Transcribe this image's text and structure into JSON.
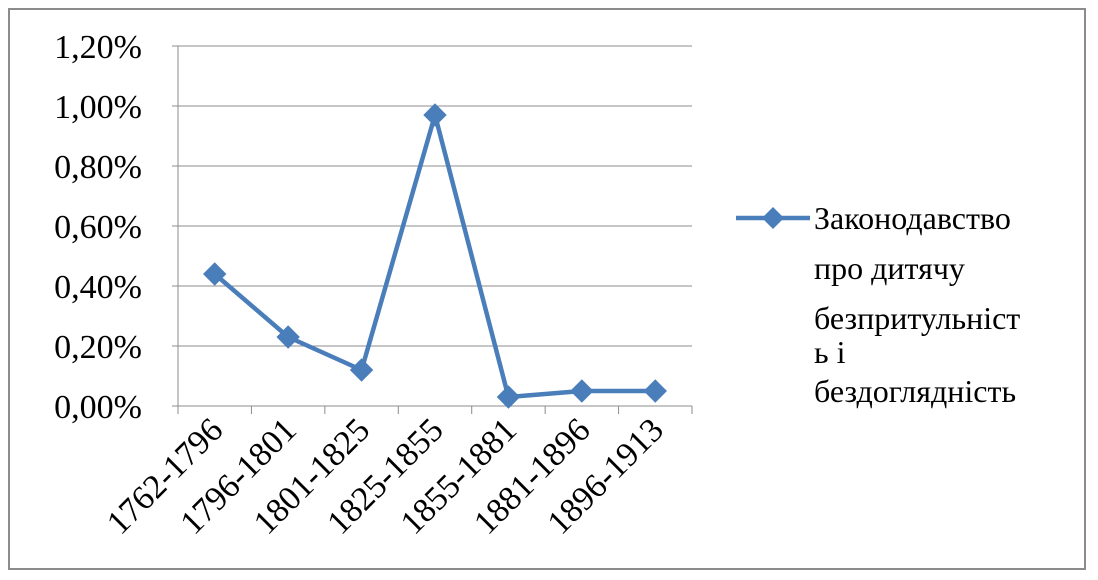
{
  "chart_data": {
    "type": "line",
    "title": "",
    "xlabel": "",
    "ylabel": "",
    "categories": [
      "1762-1796",
      "1796-1801",
      "1801-1825",
      "1825-1855",
      "1855-1881",
      "1881-1896",
      "1896-1913"
    ],
    "series": [
      {
        "name": "Законодавство про дитячу безпритульність і бездоглядність",
        "legend_lines": [
          "Законодавство",
          "про дитячу",
          "безпритульніст",
          "ь і",
          "бездоглядність"
        ],
        "values": [
          0.44,
          0.23,
          0.12,
          0.97,
          0.03,
          0.05,
          0.05
        ],
        "color": "#4a7ebb",
        "marker": "diamond"
      }
    ],
    "y_ticks": [
      "0,00%",
      "0,20%",
      "0,40%",
      "0,60%",
      "0,80%",
      "1,00%",
      "1,20%"
    ],
    "y_tick_values": [
      0,
      0.2,
      0.4,
      0.6,
      0.8,
      1.0,
      1.2
    ],
    "ylim": [
      0,
      1.2
    ],
    "y_unit": "%",
    "grid": "horizontal",
    "legend_position": "right",
    "colors": {
      "gridline": "#8c8c8c",
      "axis": "#8c8c8c",
      "frame": "#8c8c8c"
    }
  }
}
